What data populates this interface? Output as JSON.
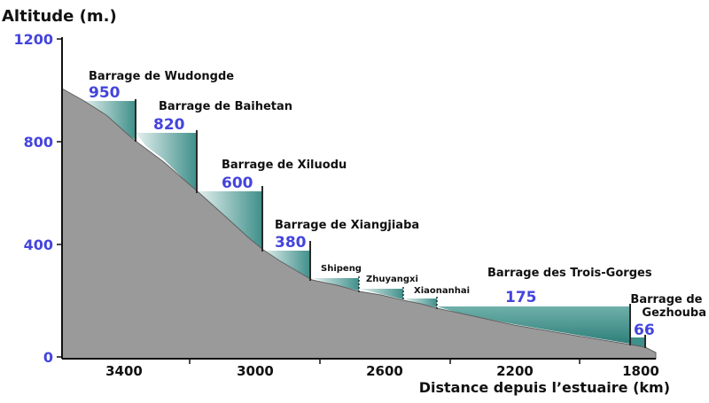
{
  "y_axis": {
    "title": "Altitude (m.)",
    "ticks": [
      "1200",
      "800",
      "400",
      "0"
    ]
  },
  "x_axis": {
    "title": "Distance depuis l’estuaire (km)",
    "ticks": [
      "3400",
      "3000",
      "2600",
      "2200",
      "1800"
    ]
  },
  "dams": [
    {
      "name": "Barrage de Wudongde",
      "altitude": "950"
    },
    {
      "name": "Barrage de Baihetan",
      "altitude": "820"
    },
    {
      "name": "Barrage de Xiluodu",
      "altitude": "600"
    },
    {
      "name": "Barrage de Xiangjiaba",
      "altitude": "380"
    },
    {
      "name": "Shipeng",
      "altitude": ""
    },
    {
      "name": "Zhuyangxi",
      "altitude": ""
    },
    {
      "name": "Xiaonanhai",
      "altitude": ""
    },
    {
      "name": "Barrage des Trois-Gorges",
      "altitude": "175"
    },
    {
      "name": "Barrage de Gezhouba",
      "altitude": "66"
    }
  ],
  "colors": {
    "terrain": "#9a9a9a",
    "reservoir_deep": "#3f8f8a",
    "reservoir_light": "#e6f2f0",
    "dam_wall": "#2a2a2a",
    "tick_label_blue": "#4444dd"
  }
}
